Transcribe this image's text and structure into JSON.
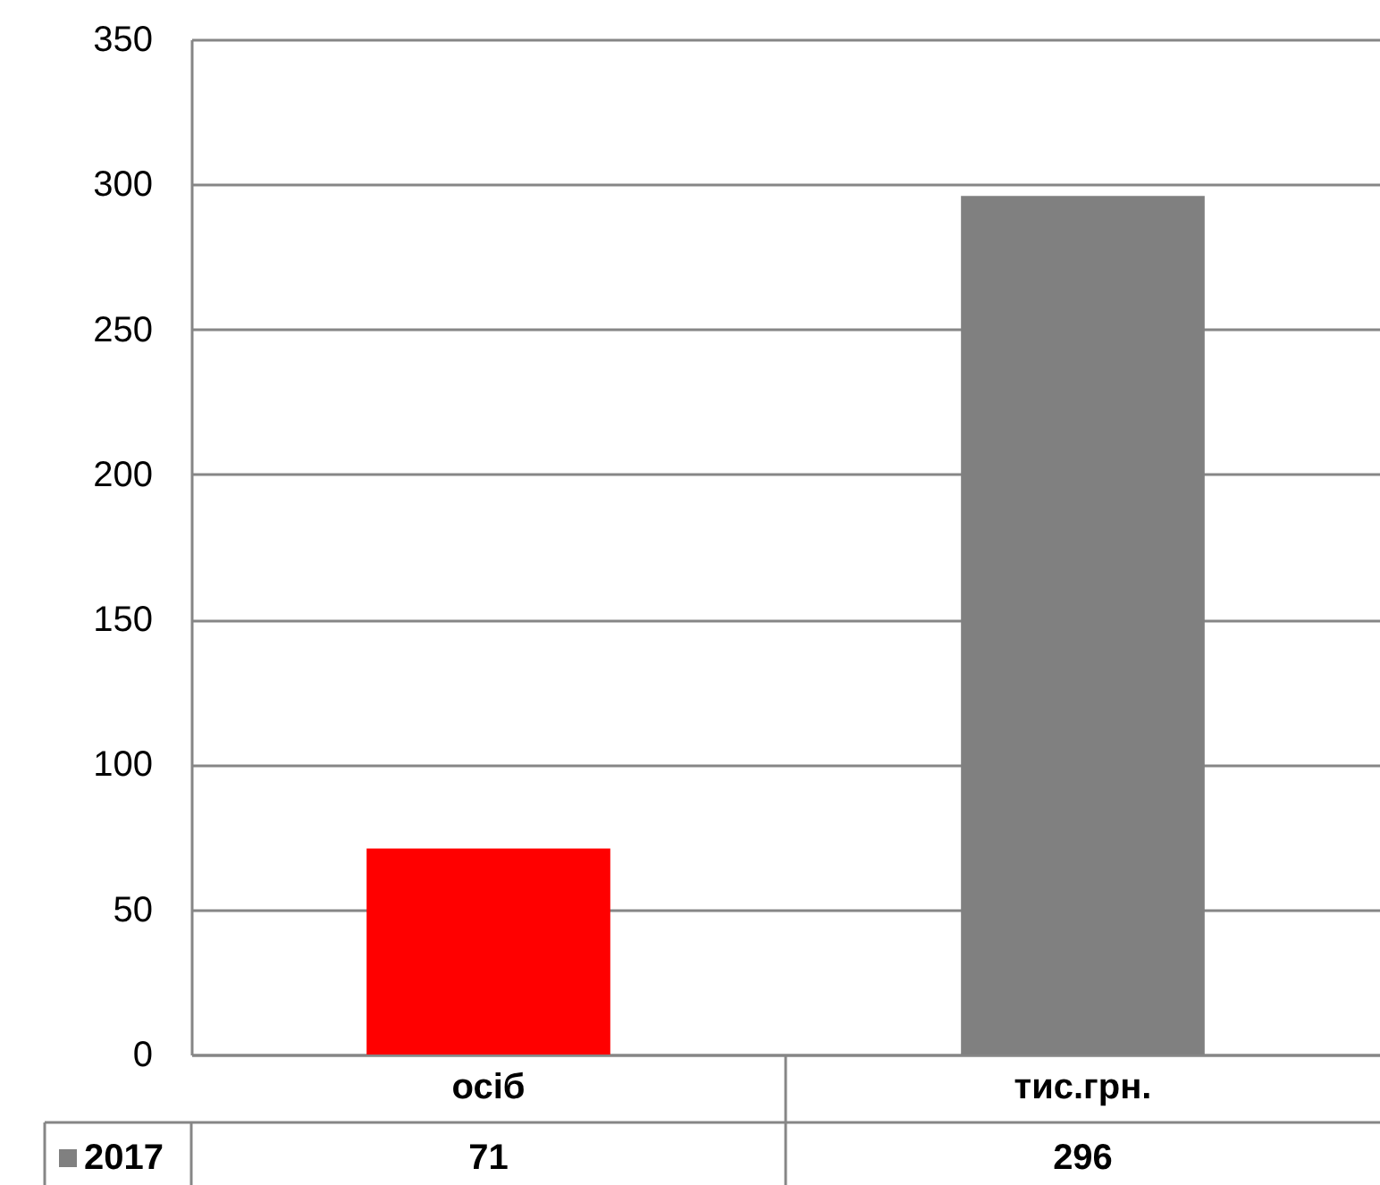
{
  "chart_data": {
    "type": "bar",
    "categories": [
      "осіб",
      "тис.грн."
    ],
    "series": [
      {
        "name": "2017",
        "color": "#808080",
        "colors": [
          "#ff0000",
          "#808080"
        ],
        "values": [
          71,
          296
        ]
      }
    ],
    "ylim": [
      0,
      350
    ],
    "yticks": [
      0,
      50,
      100,
      150,
      200,
      250,
      300,
      350
    ],
    "grid": "y",
    "legend": "bottom",
    "data_labels": true
  }
}
